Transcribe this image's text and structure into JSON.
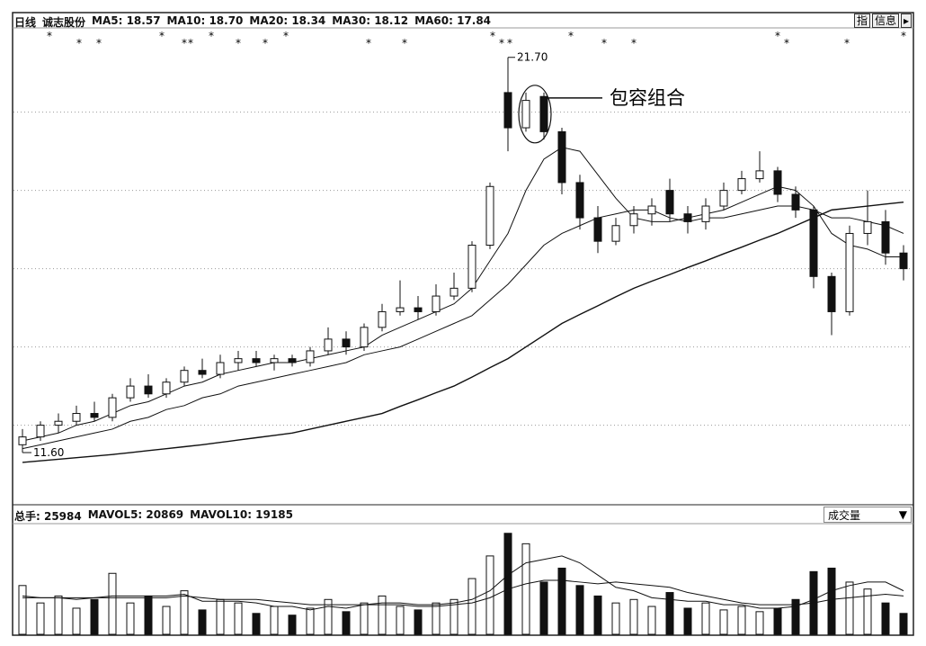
{
  "header": {
    "period": "日线",
    "stock": "诚志股份",
    "buttons": [
      "指",
      "信息"
    ]
  },
  "chart_data": [
    {
      "type": "candlestick",
      "ma_labels": [
        "MA5: 18.57",
        "MA10: 18.70",
        "MA20: 18.34",
        "MA30: 18.12",
        "MA60: 17.84"
      ],
      "candles": [
        [
          11.8,
          12.2,
          11.6,
          12.0
        ],
        [
          12.0,
          12.4,
          11.9,
          12.3
        ],
        [
          12.3,
          12.6,
          12.1,
          12.4
        ],
        [
          12.4,
          12.8,
          12.3,
          12.6
        ],
        [
          12.6,
          12.9,
          12.4,
          12.5
        ],
        [
          12.5,
          13.1,
          12.4,
          13.0
        ],
        [
          13.0,
          13.5,
          12.9,
          13.3
        ],
        [
          13.3,
          13.6,
          13.0,
          13.1
        ],
        [
          13.1,
          13.5,
          13.0,
          13.4
        ],
        [
          13.4,
          13.8,
          13.3,
          13.7
        ],
        [
          13.7,
          14.0,
          13.5,
          13.6
        ],
        [
          13.6,
          14.1,
          13.5,
          13.9
        ],
        [
          13.9,
          14.2,
          13.7,
          14.0
        ],
        [
          14.0,
          14.2,
          13.8,
          13.9
        ],
        [
          13.9,
          14.1,
          13.7,
          14.0
        ],
        [
          14.0,
          14.1,
          13.8,
          13.9
        ],
        [
          13.9,
          14.3,
          13.8,
          14.2
        ],
        [
          14.2,
          14.8,
          14.1,
          14.5
        ],
        [
          14.5,
          14.7,
          14.1,
          14.3
        ],
        [
          14.3,
          14.9,
          14.2,
          14.8
        ],
        [
          14.8,
          15.4,
          14.7,
          15.2
        ],
        [
          15.2,
          16.0,
          15.1,
          15.3
        ],
        [
          15.3,
          15.6,
          15.0,
          15.2
        ],
        [
          15.2,
          15.9,
          15.1,
          15.6
        ],
        [
          15.6,
          16.2,
          15.5,
          15.8
        ],
        [
          15.8,
          17.0,
          15.7,
          16.9
        ],
        [
          16.9,
          18.5,
          16.8,
          18.4
        ],
        [
          20.8,
          21.7,
          19.3,
          19.9
        ],
        [
          19.9,
          20.8,
          19.8,
          20.6
        ],
        [
          20.7,
          20.8,
          19.6,
          19.8
        ],
        [
          19.8,
          19.9,
          18.2,
          18.5
        ],
        [
          18.5,
          18.7,
          17.3,
          17.6
        ],
        [
          17.6,
          17.9,
          16.7,
          17.0
        ],
        [
          17.0,
          17.6,
          16.9,
          17.4
        ],
        [
          17.4,
          17.9,
          17.2,
          17.7
        ],
        [
          17.7,
          18.1,
          17.4,
          17.9
        ],
        [
          18.3,
          18.6,
          17.5,
          17.7
        ],
        [
          17.7,
          17.9,
          17.2,
          17.5
        ],
        [
          17.5,
          18.1,
          17.3,
          17.9
        ],
        [
          17.9,
          18.5,
          17.8,
          18.3
        ],
        [
          18.3,
          18.8,
          18.2,
          18.6
        ],
        [
          18.6,
          19.3,
          18.5,
          18.8
        ],
        [
          18.8,
          18.9,
          18.0,
          18.2
        ],
        [
          18.2,
          18.4,
          17.6,
          17.8
        ],
        [
          17.8,
          17.9,
          15.8,
          16.1
        ],
        [
          16.1,
          16.2,
          14.6,
          15.2
        ],
        [
          15.2,
          17.4,
          15.1,
          17.2
        ],
        [
          17.2,
          18.3,
          16.9,
          17.5
        ],
        [
          17.5,
          17.8,
          16.4,
          16.7
        ],
        [
          16.7,
          16.9,
          16.0,
          16.3
        ]
      ],
      "series": [
        {
          "values": [
            11.9,
            12.0,
            12.1,
            12.3,
            12.4,
            12.6,
            12.8,
            12.9,
            13.1,
            13.3,
            13.4,
            13.6,
            13.7,
            13.8,
            13.9,
            13.9,
            14.0,
            14.1,
            14.2,
            14.3,
            14.6,
            14.8,
            15.0,
            15.2,
            15.4,
            15.8,
            16.5,
            17.2,
            18.3,
            19.1,
            19.4,
            19.3,
            18.7,
            18.1,
            17.6,
            17.5,
            17.5,
            17.6,
            17.7,
            17.8,
            18.0,
            18.2,
            18.4,
            18.3,
            17.9,
            17.2,
            16.9,
            16.8,
            16.6,
            16.6
          ]
        },
        {
          "values": [
            11.7,
            11.8,
            11.9,
            12.0,
            12.1,
            12.2,
            12.4,
            12.5,
            12.7,
            12.8,
            13.0,
            13.1,
            13.3,
            13.4,
            13.5,
            13.6,
            13.7,
            13.8,
            13.9,
            14.1,
            14.2,
            14.3,
            14.5,
            14.7,
            14.9,
            15.1,
            15.5,
            15.9,
            16.4,
            16.9,
            17.2,
            17.4,
            17.6,
            17.7,
            17.8,
            17.8,
            17.6,
            17.5,
            17.6,
            17.6,
            17.7,
            17.8,
            17.9,
            17.9,
            17.8,
            17.6,
            17.6,
            17.5,
            17.4,
            17.2
          ]
        },
        {
          "values": [
            11.35,
            11.39,
            11.43,
            11.47,
            11.51,
            11.55,
            11.6,
            11.65,
            11.7,
            11.75,
            11.8,
            11.86,
            11.92,
            11.98,
            12.04,
            12.1,
            12.2,
            12.3,
            12.4,
            12.5,
            12.6,
            12.78,
            12.95,
            13.13,
            13.3,
            13.53,
            13.77,
            14.0,
            14.3,
            14.6,
            14.9,
            15.13,
            15.35,
            15.58,
            15.8,
            15.98,
            16.15,
            16.33,
            16.5,
            16.68,
            16.85,
            17.03,
            17.2,
            17.4,
            17.6,
            17.8,
            17.85,
            17.9,
            17.95,
            18.0
          ]
        }
      ],
      "ylim": [
        10.29,
        22.43
      ],
      "ygrid": [
        12.3,
        14.3,
        16.3,
        18.3,
        20.3
      ],
      "max_label": {
        "value": 21.7,
        "label": "21.70"
      },
      "min_label": {
        "value": 11.6,
        "label": "11.60"
      },
      "annotation": "包容组合"
    },
    {
      "type": "volume",
      "header_items": [
        "总手: 25984",
        "MAVOL5: 20869",
        "MAVOL10: 19185"
      ],
      "indicator": "成交量",
      "values": [
        28000,
        18000,
        22000,
        15000,
        20000,
        35000,
        18000,
        22000,
        16000,
        25000,
        14000,
        20000,
        18000,
        12000,
        16000,
        11000,
        15000,
        20000,
        13000,
        18000,
        22000,
        16000,
        14000,
        18000,
        20000,
        32000,
        45000,
        58000,
        52000,
        30000,
        38000,
        28000,
        22000,
        18000,
        20000,
        16000,
        24000,
        15000,
        18000,
        14000,
        16000,
        13000,
        15000,
        20000,
        36000,
        38000,
        30000,
        26000,
        18000,
        12000
      ],
      "series": [
        {
          "values": [
            22000,
            21000,
            21000,
            20000,
            21000,
            22000,
            22000,
            22000,
            22000,
            23000,
            19000,
            19000,
            19000,
            18000,
            16000,
            16000,
            14000,
            16000,
            15000,
            17000,
            18000,
            18000,
            17000,
            17000,
            18000,
            20000,
            25000,
            34000,
            41000,
            43000,
            45000,
            41000,
            34000,
            27000,
            25000,
            21000,
            20000,
            19000,
            19000,
            17000,
            17000,
            15000,
            15000,
            16000,
            20000,
            25000,
            28000,
            30000,
            30000,
            25000
          ]
        },
        {
          "values": [
            21000,
            21000,
            21000,
            21000,
            21000,
            21000,
            21000,
            21000,
            21000,
            22000,
            21000,
            20000,
            20000,
            20000,
            19000,
            18000,
            17000,
            17000,
            17000,
            17000,
            17000,
            17000,
            16000,
            16000,
            17000,
            18000,
            21000,
            26000,
            29000,
            31000,
            31000,
            30000,
            29000,
            30000,
            29000,
            28000,
            27000,
            24000,
            22000,
            20000,
            18000,
            17000,
            17000,
            17000,
            18000,
            20000,
            21000,
            22000,
            23000,
            22000
          ]
        }
      ],
      "ylim": [
        0,
        62000
      ]
    }
  ]
}
